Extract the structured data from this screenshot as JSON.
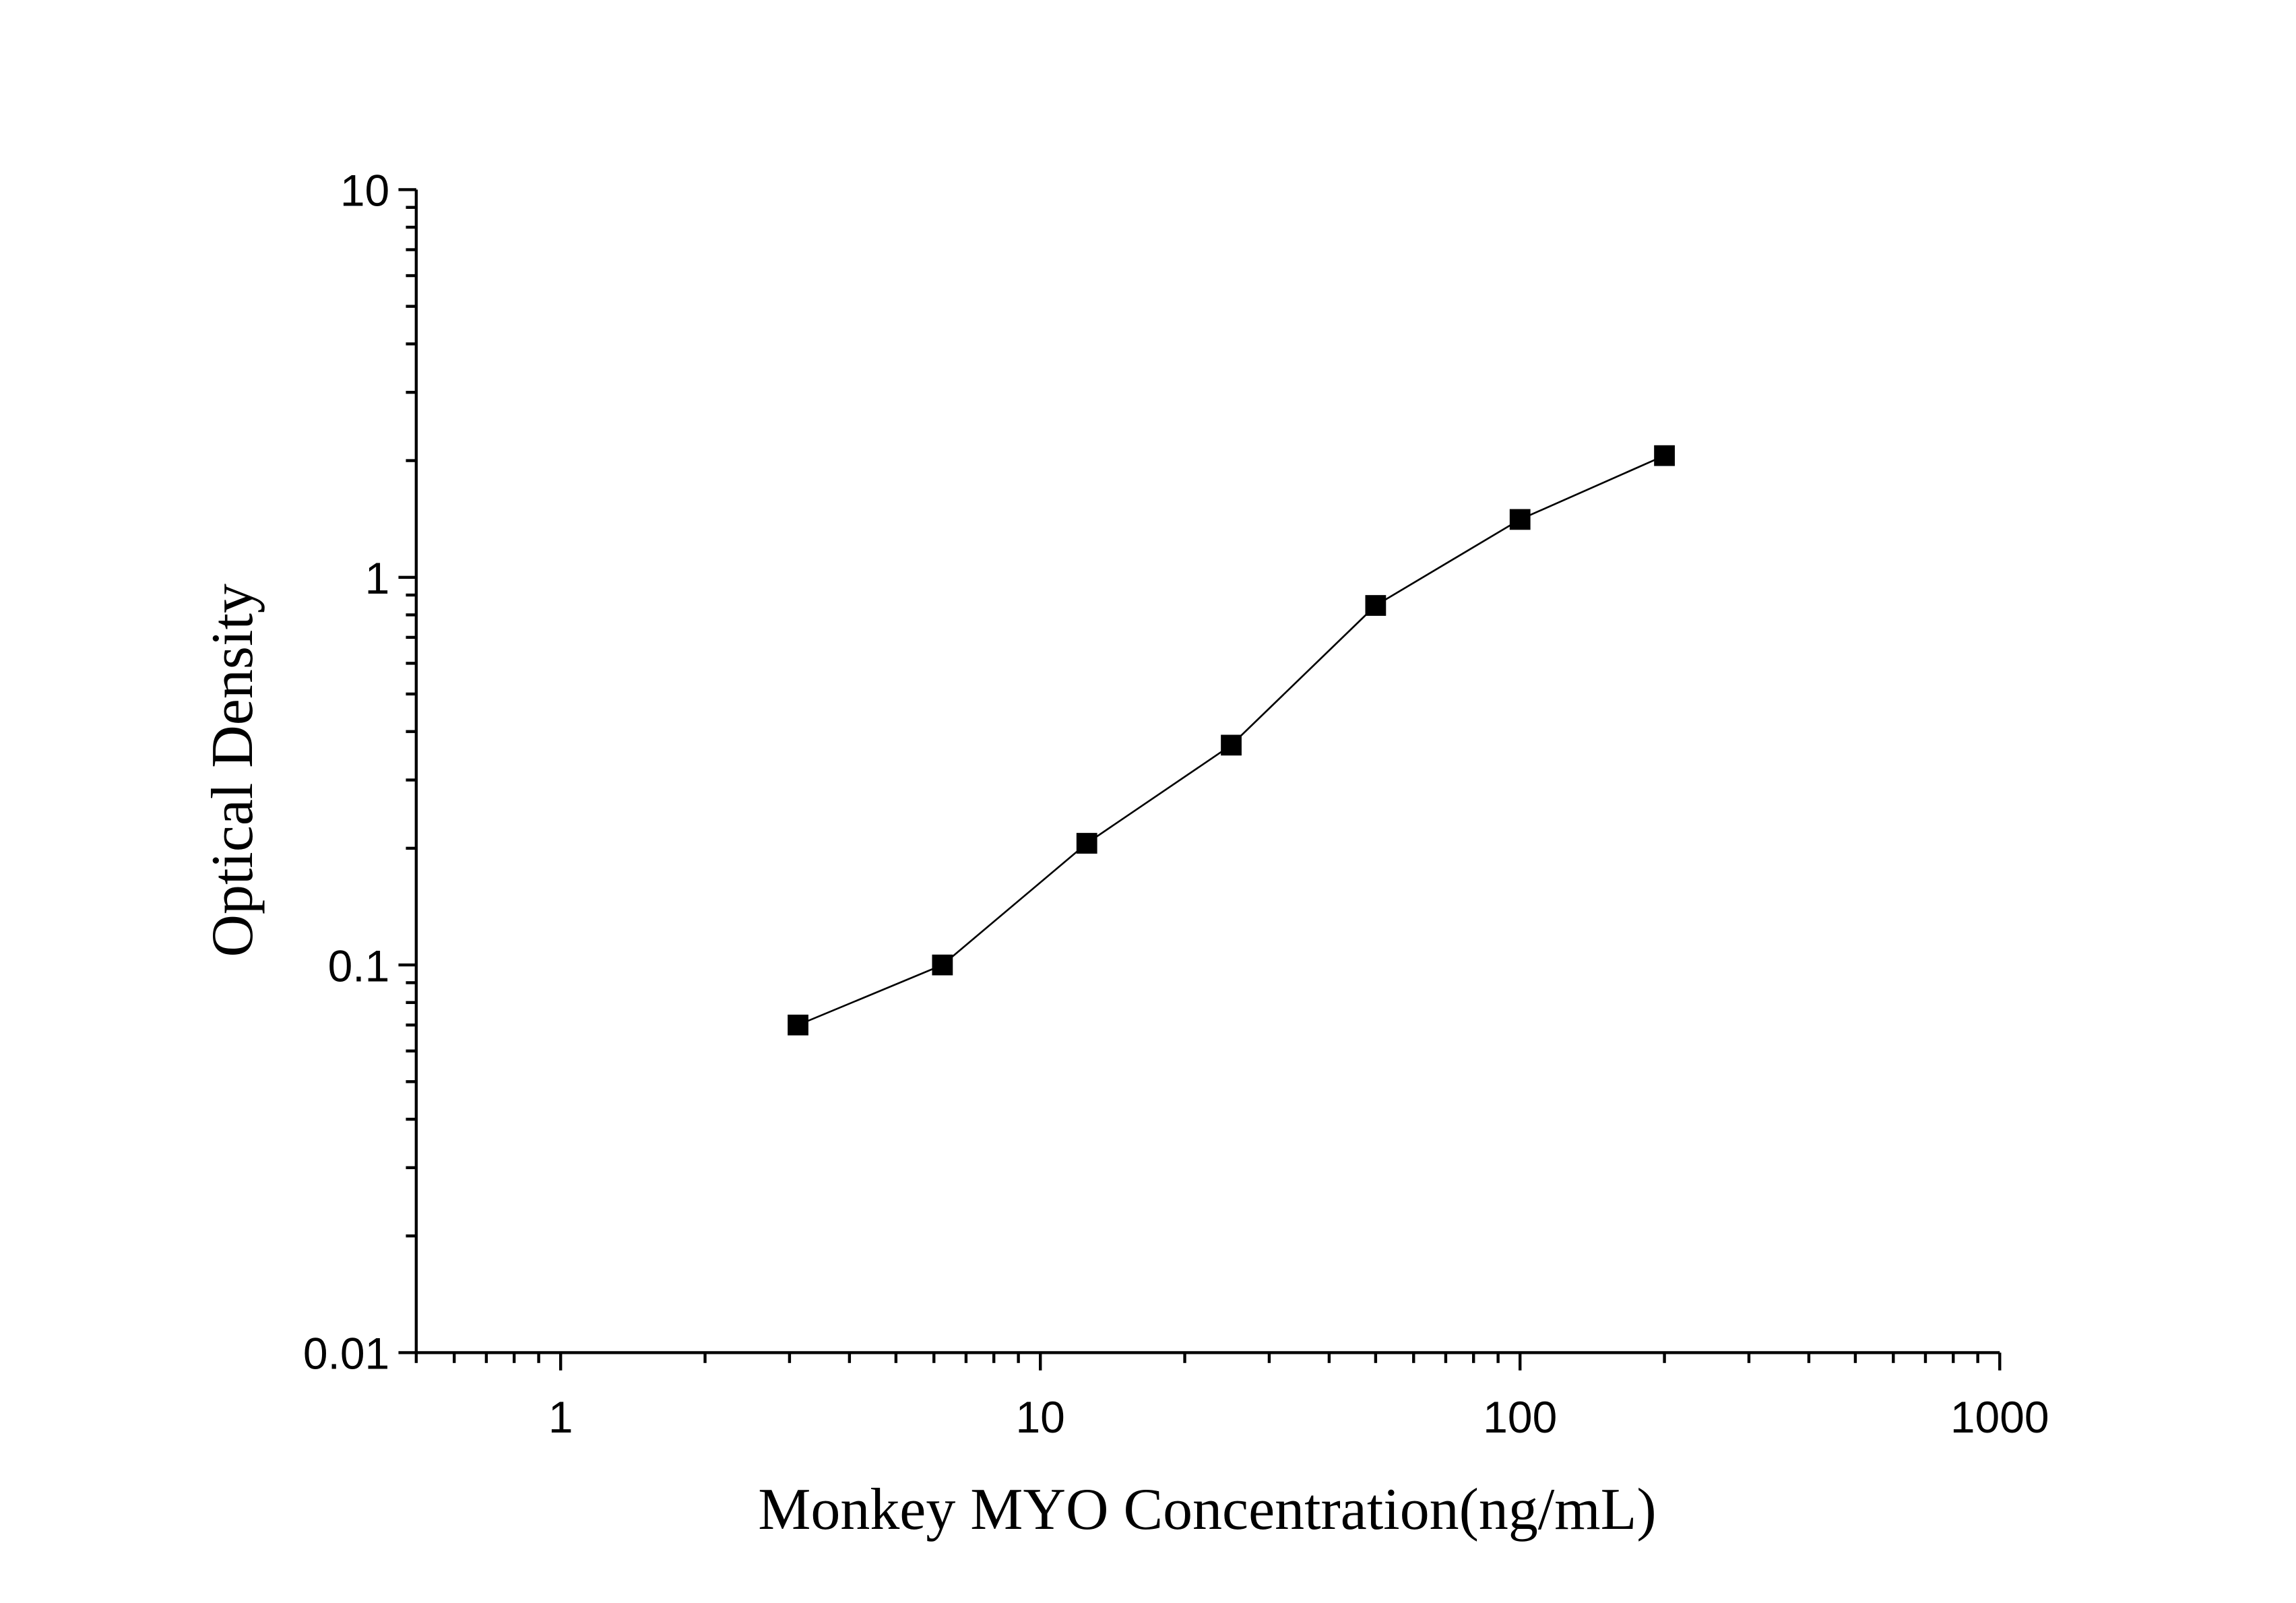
{
  "chart_data": {
    "type": "scatter",
    "title": "",
    "xlabel": "Monkey MYO Concentration(ng/mL)",
    "ylabel": "Optical Density",
    "x_scale": "log",
    "y_scale": "log",
    "xlim": [
      0.5,
      1000
    ],
    "ylim": [
      0.01,
      10
    ],
    "x_ticks": [
      "1",
      "10",
      "100",
      "1000"
    ],
    "y_ticks": [
      "0.01",
      "0.1",
      "1",
      "10"
    ],
    "grid": false,
    "marker": "square",
    "line": "fitted curve through points",
    "color": "#000000",
    "x": [
      3.125,
      6.25,
      12.5,
      25,
      50,
      100,
      200
    ],
    "y": [
      0.07,
      0.1,
      0.206,
      0.369,
      0.846,
      1.41,
      2.06
    ]
  }
}
